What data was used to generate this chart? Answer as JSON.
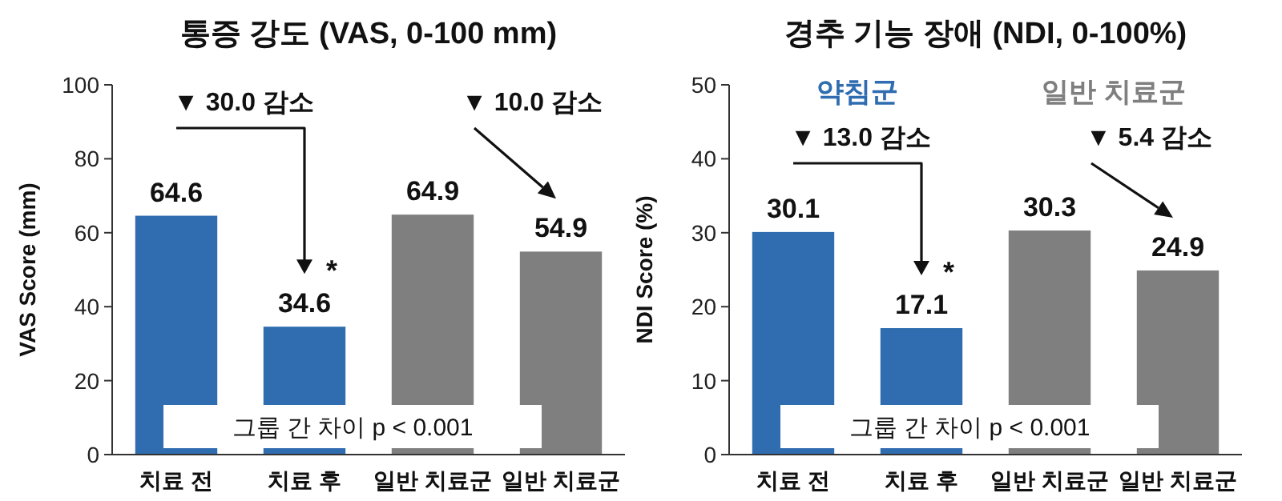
{
  "chart_data": [
    {
      "type": "bar",
      "title": "통증 강도 (VAS, 0-100 mm)",
      "ylabel": "VAS Score (mm)",
      "categories": [
        "치료 전",
        "치료 후",
        "일반 치료군",
        "일반 치료군"
      ],
      "values": [
        64.6,
        34.6,
        64.9,
        54.9
      ],
      "colors": [
        "#2f6db0",
        "#2f6db0",
        "#7f7f7f",
        "#7f7f7f"
      ],
      "ylim": [
        0,
        100
      ],
      "yticks": [
        0,
        20,
        40,
        60,
        80,
        100
      ],
      "data_labels": true,
      "annotations": [
        "▼ 30.0 감소",
        "▼ 10.0 감소",
        "*",
        "그룹 간 차이 p < 0.001"
      ]
    },
    {
      "type": "bar",
      "title": "경추 기능 장애 (NDI, 0-100%)",
      "ylabel": "NDI Score (%)",
      "categories": [
        "치료 전",
        "치료 후",
        "일반 치료군",
        "일반 치료군"
      ],
      "series": [
        {
          "name": "약침군",
          "color": "#2f6db0",
          "values": [
            30.1,
            17.1,
            null,
            null
          ]
        },
        {
          "name": "일반 치료군",
          "color": "#7f7f7f",
          "values": [
            null,
            null,
            30.3,
            24.9
          ]
        }
      ],
      "ylim": [
        0,
        50
      ],
      "yticks": [
        0,
        10,
        20,
        30,
        40,
        50
      ],
      "data_labels": true,
      "annotations": [
        "▼ 13.0 감소",
        "▼ 5.4 감소",
        "*",
        "그룹 간 차이 p < 0.001"
      ]
    }
  ]
}
